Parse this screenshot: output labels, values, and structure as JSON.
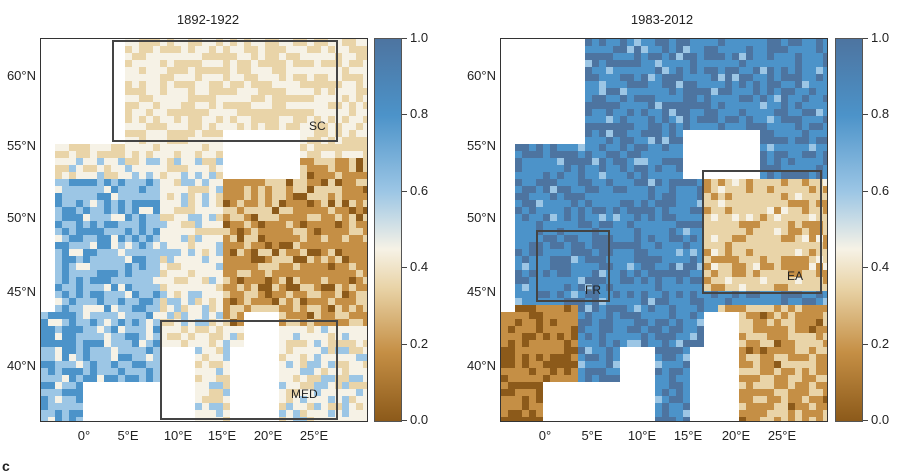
{
  "panels": [
    {
      "title": "1892-1922",
      "regions": [
        "SC",
        "MED"
      ]
    },
    {
      "title": "1983-2012",
      "regions": [
        "FR",
        "EA"
      ]
    }
  ],
  "lat_labels": [
    "60°N",
    "55°N",
    "50°N",
    "45°N",
    "40°N"
  ],
  "lon_labels": [
    "0°",
    "5°E",
    "10°E",
    "15°E",
    "20°E",
    "25°E"
  ],
  "colorbar": {
    "labels": [
      "1.0",
      "0.8",
      "0.6",
      "0.4",
      "0.2",
      "0.0"
    ],
    "range": [
      0,
      1
    ],
    "colors": [
      "#8c5a1a",
      "#c58f45",
      "#e9d4a8",
      "#f6f2e6",
      "#9cc6e5",
      "#4c93c9",
      "#4d74a0"
    ]
  },
  "stray_label": "c"
}
